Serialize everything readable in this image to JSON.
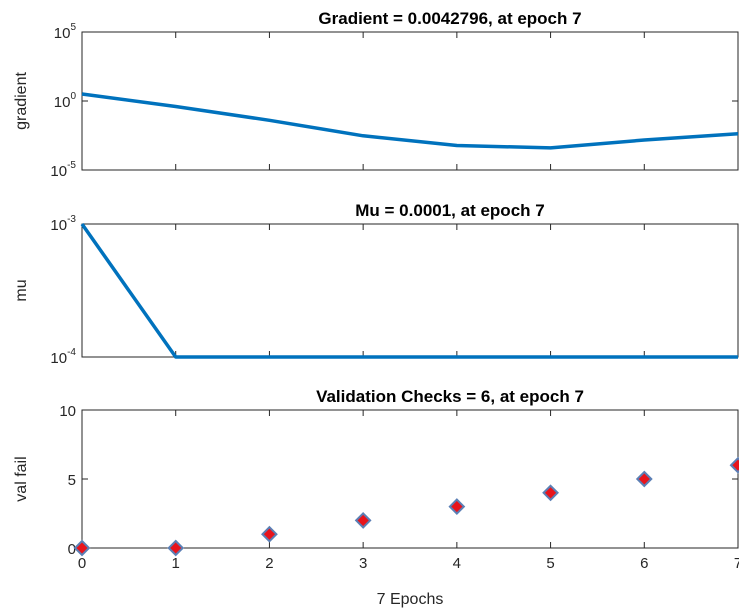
{
  "chart_data": [
    {
      "type": "line",
      "title": "Gradient = 0.0042796, at epoch 7",
      "ylabel": "gradient",
      "yscale": "log",
      "ylim": [
        1e-05,
        100000
      ],
      "xlim": [
        0,
        7
      ],
      "yticks": [
        {
          "base": "10",
          "exp": "5"
        },
        {
          "base": "10",
          "exp": "0"
        },
        {
          "base": "10",
          "exp": "-5"
        }
      ],
      "ytick_values": [
        100000,
        1,
        1e-05
      ],
      "series": [
        {
          "x": [
            0,
            1,
            2,
            3,
            4,
            5,
            6,
            7
          ],
          "y": [
            3.2,
            0.4,
            0.04,
            0.003,
            0.0006,
            0.0004,
            0.0015,
            0.0042796
          ],
          "color": "#0072BD"
        }
      ]
    },
    {
      "type": "line",
      "title": "Mu = 0.0001, at epoch 7",
      "ylabel": "mu",
      "yscale": "log",
      "ylim": [
        0.0001,
        0.001
      ],
      "xlim": [
        0,
        7
      ],
      "yticks": [
        {
          "base": "10",
          "exp": "-3"
        },
        {
          "base": "10",
          "exp": "-4"
        }
      ],
      "ytick_values": [
        0.001,
        0.0001
      ],
      "series": [
        {
          "x": [
            0,
            1,
            2,
            3,
            4,
            5,
            6,
            7
          ],
          "y": [
            0.001,
            0.0001,
            0.0001,
            0.0001,
            0.0001,
            0.0001,
            0.0001,
            0.0001
          ],
          "color": "#0072BD"
        }
      ]
    },
    {
      "type": "scatter",
      "title": "Validation Checks = 6, at epoch 7",
      "ylabel": "val fail",
      "xlabel": "7 Epochs",
      "ylim": [
        0,
        10
      ],
      "xlim": [
        0,
        7
      ],
      "yticks": [
        "10",
        "5",
        "0"
      ],
      "ytick_values": [
        10,
        5,
        0
      ],
      "xticks": [
        "0",
        "1",
        "2",
        "3",
        "4",
        "5",
        "6",
        "7"
      ],
      "series": [
        {
          "x": [
            0,
            1,
            2,
            3,
            4,
            5,
            6,
            7
          ],
          "y": [
            0,
            0,
            1,
            2,
            3,
            4,
            5,
            6
          ],
          "color": "#E8141C",
          "edge_color": "#5B7FB5"
        }
      ]
    }
  ]
}
